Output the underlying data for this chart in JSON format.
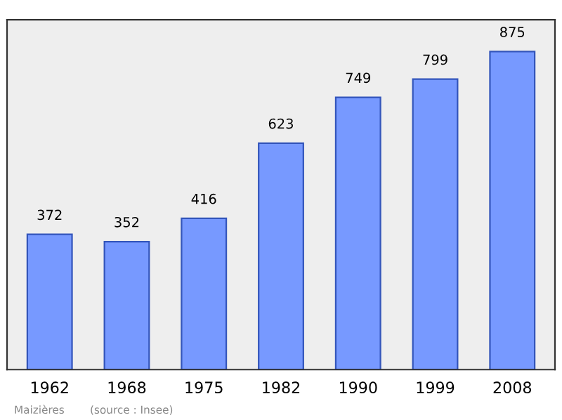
{
  "chart_data": {
    "type": "bar",
    "categories": [
      "1962",
      "1968",
      "1975",
      "1982",
      "1990",
      "1999",
      "2008"
    ],
    "values": [
      372,
      352,
      416,
      623,
      749,
      799,
      875
    ],
    "color": "#7799ff",
    "data_labels": true,
    "grid": false,
    "annotations": [
      "Maizières",
      "(source : Insee)"
    ]
  }
}
